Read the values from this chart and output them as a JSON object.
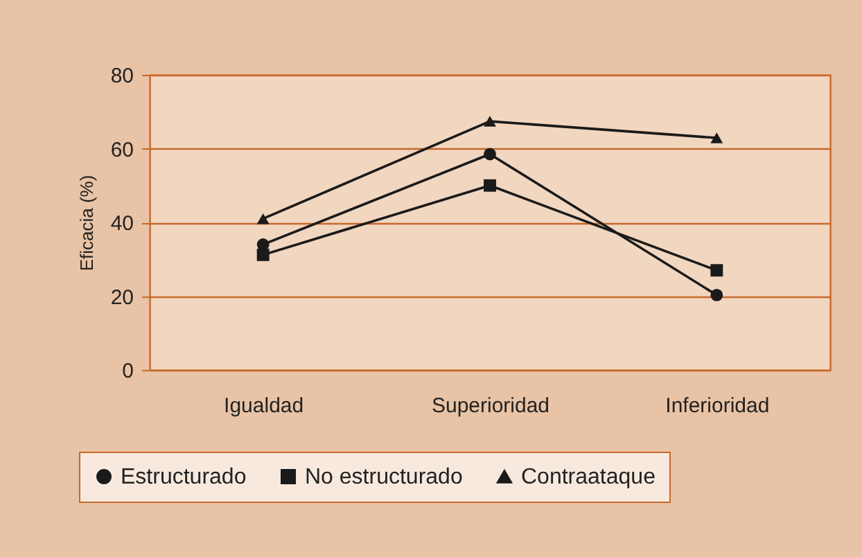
{
  "chart_data": {
    "type": "line",
    "ylabel": "Eficacia (%)",
    "categories": [
      "Igualdad",
      "Superioridad",
      "Inferioridad"
    ],
    "series": [
      {
        "name": "Estructurado",
        "color": "#1a1a1a",
        "marker": "circle",
        "values": [
          34,
          58.5,
          20.3
        ]
      },
      {
        "name": "No estructurado",
        "color": "#1a1a1a",
        "marker": "square",
        "values": [
          31.2,
          50,
          27
        ]
      },
      {
        "name": "Contraataque",
        "color": "#1a1a1a",
        "marker": "triangle",
        "values": [
          41,
          67.4,
          62.9
        ]
      }
    ],
    "ylim": [
      0,
      80
    ],
    "yticks": [
      0,
      20,
      40,
      60,
      80
    ],
    "grid": "y",
    "legend": "bottom",
    "line_style": "solid"
  }
}
